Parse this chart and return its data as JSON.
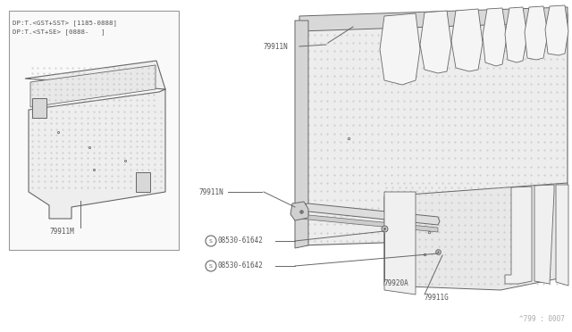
{
  "bg": "#ffffff",
  "line_c": "#666666",
  "fill_c": "#f0f0f0",
  "dot_c": "#bbbbbb",
  "text_c": "#555555",
  "box_label1": "DP:T.<GST+SST> [1185-0888]",
  "box_label2": "DP:T.<ST+SE> [0888-   ]",
  "watermark": "^799 : 0007",
  "label_79911M": "79911M",
  "label_79911N_top": "79911N",
  "label_79911N_mid": "79911N",
  "label_79920A": "79920A",
  "label_79911G": "79911G",
  "label_screw1": "08530-61642",
  "label_screw2": "08530-61642"
}
